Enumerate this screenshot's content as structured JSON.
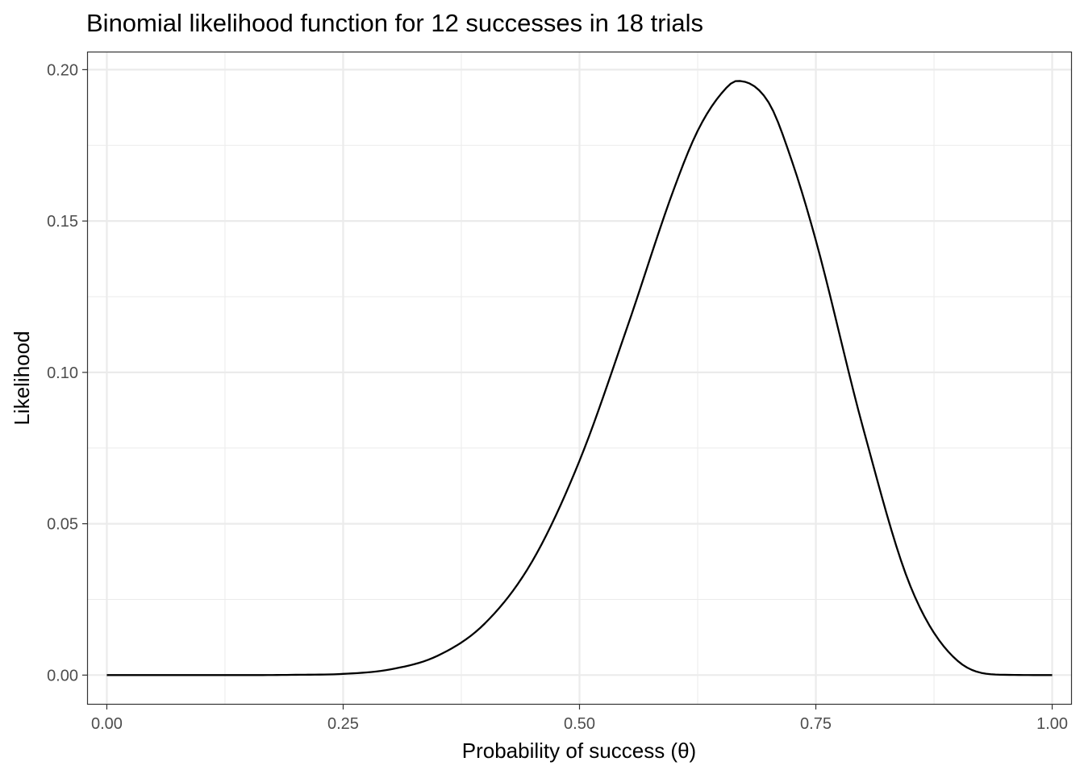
{
  "chart_data": {
    "type": "line",
    "title": "Binomial likelihood function for 12 successes in 18 trials",
    "xlabel": "Probability of success (θ)",
    "ylabel": "Likelihood",
    "xlim": [
      -0.02,
      1.02
    ],
    "ylim": [
      -0.0095,
      0.2057
    ],
    "x_ticks": [
      {
        "value": 0.0,
        "label": "0.00"
      },
      {
        "value": 0.25,
        "label": "0.25"
      },
      {
        "value": 0.5,
        "label": "0.50"
      },
      {
        "value": 0.75,
        "label": "0.75"
      },
      {
        "value": 1.0,
        "label": "1.00"
      }
    ],
    "y_ticks": [
      {
        "value": 0.0,
        "label": "0.00"
      },
      {
        "value": 0.05,
        "label": "0.05"
      },
      {
        "value": 0.1,
        "label": "0.10"
      },
      {
        "value": 0.15,
        "label": "0.15"
      },
      {
        "value": 0.2,
        "label": "0.20"
      }
    ],
    "x_minor_ticks": [
      0.125,
      0.375,
      0.625,
      0.875
    ],
    "y_minor_ticks": [
      0.025,
      0.075,
      0.125,
      0.175
    ],
    "grid": true,
    "series": [
      {
        "color": "#000000",
        "x": [
          0.0,
          0.05,
          0.1,
          0.15,
          0.2,
          0.25,
          0.3,
          0.35,
          0.4,
          0.45,
          0.5,
          0.55,
          0.6,
          0.625,
          0.65,
          0.667,
          0.7,
          0.725,
          0.75,
          0.8,
          0.85,
          0.9,
          0.95,
          1.0
        ],
        "y": [
          0.0,
          0.0,
          0.0,
          0.0,
          0.0001,
          0.0004,
          0.0019,
          0.0064,
          0.0171,
          0.0376,
          0.0708,
          0.1145,
          0.1607,
          0.1798,
          0.1921,
          0.1963,
          0.1892,
          0.1695,
          0.1436,
          0.0816,
          0.0294,
          0.0047,
          0.0001,
          0.0
        ]
      }
    ]
  }
}
